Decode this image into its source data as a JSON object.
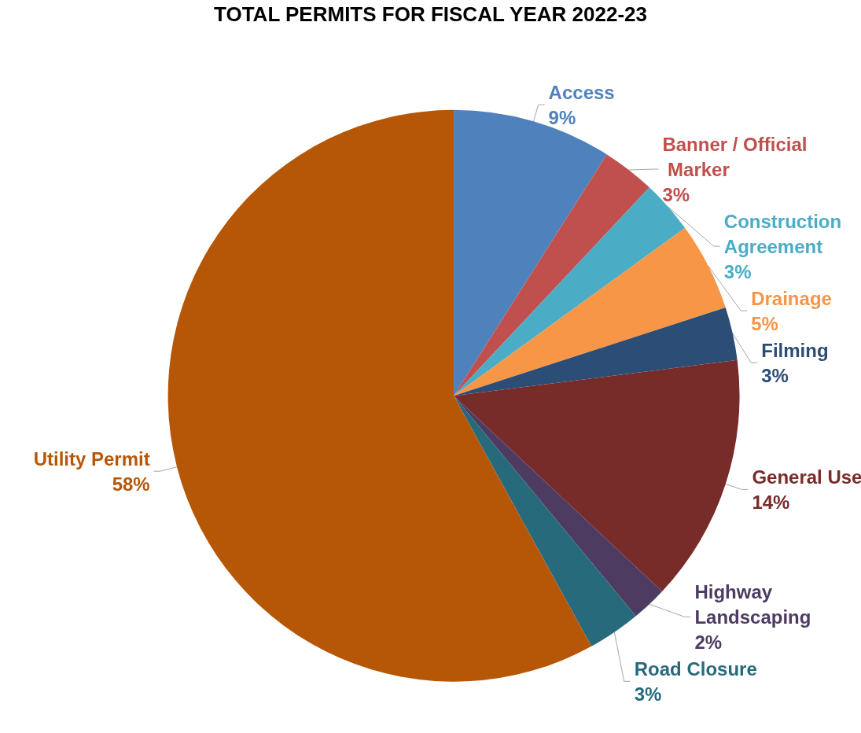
{
  "chart_data": {
    "type": "pie",
    "title": "TOTAL PERMITS FOR FISCAL YEAR 2022-23",
    "categories": [
      "Access",
      "Banner / Official Marker",
      "Construction Agreement",
      "Drainage",
      "Filming",
      "General Use",
      "Highway Landscaping",
      "Road Closure",
      "Utility Permit"
    ],
    "values": [
      9,
      3,
      3,
      5,
      3,
      14,
      2,
      3,
      58
    ],
    "colors": [
      "#4f81bd",
      "#c0504d",
      "#4bacc6",
      "#f79646",
      "#2c4d75",
      "#772c2a",
      "#4d3b62",
      "#276a7c",
      "#b65708"
    ],
    "value_labels": [
      "9%",
      "3%",
      "3%",
      "5%",
      "3%",
      "14%",
      "2%",
      "3%",
      "58%"
    ],
    "legend": false
  }
}
